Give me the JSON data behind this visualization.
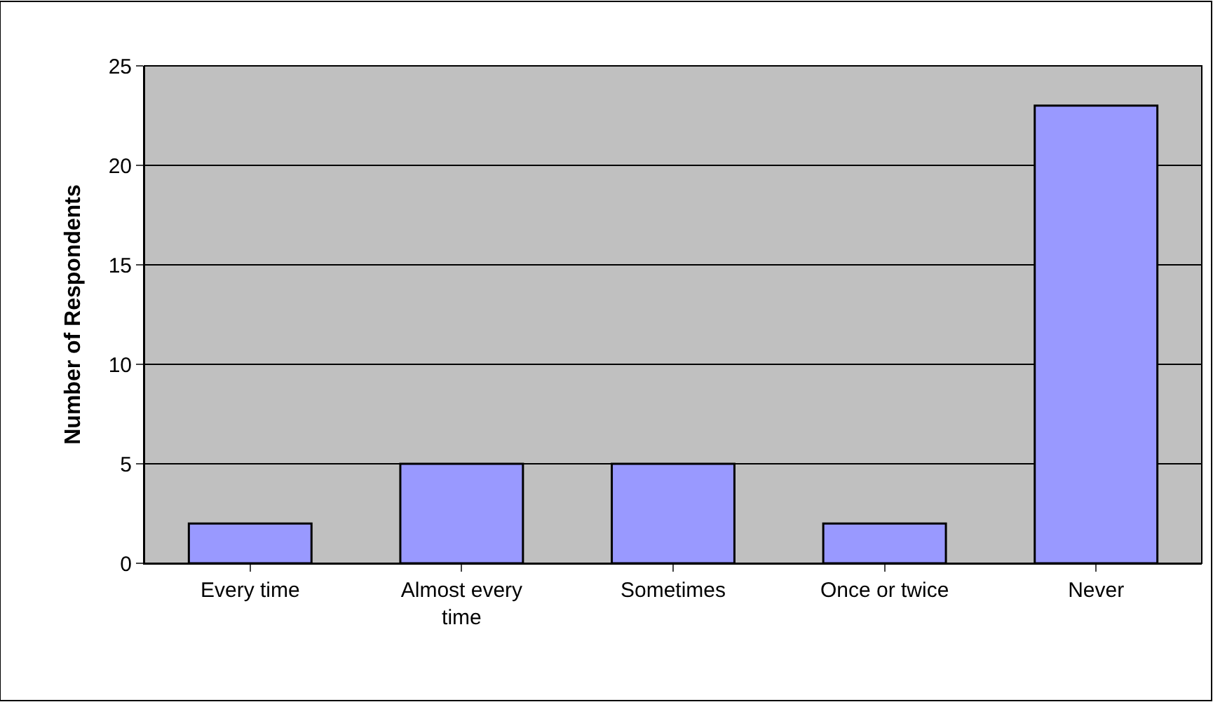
{
  "chart_data": {
    "type": "bar",
    "ylabel": "Number of Respondents",
    "categories": [
      "Every time",
      "Almost every time",
      "Sometimes",
      "Once or twice",
      "Never"
    ],
    "values": [
      2,
      5,
      5,
      2,
      23
    ],
    "color": "#9999ff",
    "ylim": [
      0,
      25
    ],
    "yticks": [
      0,
      5,
      10,
      15,
      20,
      25
    ],
    "grid": "y",
    "legend": false
  }
}
